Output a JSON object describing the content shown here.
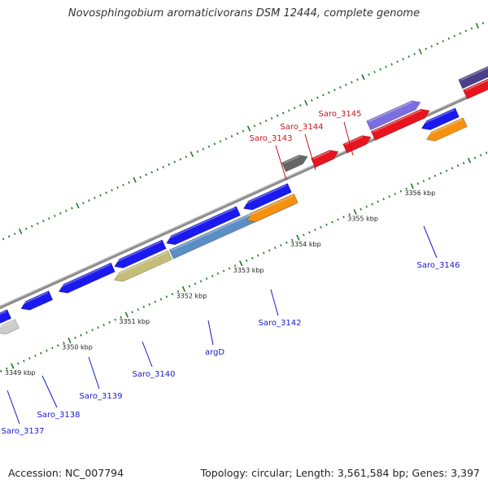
{
  "title": "Novosphingobium aromaticivorans DSM 12444, complete genome",
  "footer": {
    "accession": "Accession: NC_007794",
    "summary": "Topology: circular; Length: 3,561,584 bp; Genes: 3,397"
  },
  "ticks": [
    {
      "label": "3349 kbp",
      "kbp": 3349
    },
    {
      "label": "3350 kbp",
      "kbp": 3350
    },
    {
      "label": "3351 kbp",
      "kbp": 3351
    },
    {
      "label": "3352 kbp",
      "kbp": 3352
    },
    {
      "label": "3353 kbp",
      "kbp": 3353
    },
    {
      "label": "3354 kbp",
      "kbp": 3354
    },
    {
      "label": "3355 kbp",
      "kbp": 3355
    },
    {
      "label": "3356 kbp",
      "kbp": 3356
    }
  ],
  "genes": [
    {
      "name": "Saro_3137",
      "strand": "reverse"
    },
    {
      "name": "Saro_3138",
      "strand": "reverse"
    },
    {
      "name": "Saro_3139",
      "strand": "reverse"
    },
    {
      "name": "Saro_3140",
      "strand": "reverse"
    },
    {
      "name": "argD",
      "strand": "reverse"
    },
    {
      "name": "Saro_3142",
      "strand": "reverse"
    },
    {
      "name": "Saro_3143",
      "strand": "forward"
    },
    {
      "name": "Saro_3144",
      "strand": "forward"
    },
    {
      "name": "Saro_3145",
      "strand": "forward"
    },
    {
      "name": "Saro_3146",
      "strand": "reverse"
    }
  ],
  "colors": {
    "backbone": "#8c8c8c",
    "tick": "#1e7a1e",
    "cds": "#1a1aee",
    "forward_cds": "#e8141e",
    "forward_label": "#c8141e",
    "reverse_label": "#1a1acc",
    "orange": "#f59010",
    "olive": "#c4bc78",
    "steel": "#5a8ec4",
    "lavender": "#7b6ee0",
    "dark_gray": "#666666",
    "light_gray": "#cccccc",
    "navy": "#4a4088"
  }
}
